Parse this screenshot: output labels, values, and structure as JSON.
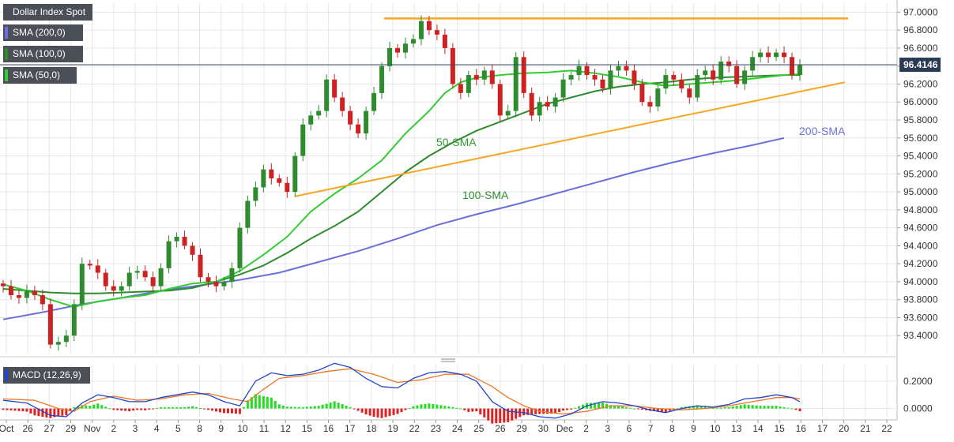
{
  "chart_data": [
    {
      "type": "candlestick",
      "title": "Dollar Index Spot",
      "last_price": "96.4146",
      "ylim": [
        93.2,
        97.1
      ],
      "y_ticks": [
        "97.0000",
        "96.8000",
        "96.6000",
        "96.4000",
        "96.2000",
        "96.0000",
        "95.8000",
        "95.6000",
        "95.4000",
        "95.2000",
        "95.0000",
        "94.8000",
        "94.6000",
        "94.4000",
        "94.2000",
        "94.0000",
        "93.8000",
        "93.6000",
        "93.4000"
      ],
      "x_ticks": [
        "Oct",
        "26",
        "27",
        "29",
        "Nov",
        "2",
        "3",
        "4",
        "5",
        "8",
        "9",
        "10",
        "11",
        "12",
        "15",
        "16",
        "17",
        "18",
        "19",
        "22",
        "23",
        "24",
        "25",
        "26",
        "29",
        "30",
        "Dec",
        "2",
        "3",
        "6",
        "7",
        "8",
        "9",
        "10",
        "13",
        "14",
        "15",
        "16",
        "17",
        "20",
        "21",
        "22"
      ],
      "legend": [
        {
          "label": "SMA (200,0)",
          "color": "#6a6fd9"
        },
        {
          "label": "SMA (100,0)",
          "color": "#2e8b2e"
        },
        {
          "label": "SMA (50,0)",
          "color": "#33cc33"
        }
      ],
      "annotations": [
        {
          "text": "50-SMA",
          "color": "#2e9e2e"
        },
        {
          "text": "100-SMA",
          "color": "#2e8b2e"
        },
        {
          "text": "200-SMA",
          "color": "#6a6fd9"
        }
      ],
      "close_path": [
        93.95,
        93.85,
        93.82,
        93.9,
        93.85,
        93.75,
        93.3,
        93.33,
        93.4,
        93.75,
        94.2,
        94.18,
        94.1,
        93.95,
        93.9,
        93.95,
        94.1,
        94.12,
        94.05,
        93.95,
        94.15,
        94.45,
        94.5,
        94.4,
        94.3,
        94.05,
        94.0,
        93.95,
        94.0,
        94.15,
        94.6,
        94.9,
        95.05,
        95.25,
        95.15,
        95.1,
        95.0,
        95.4,
        95.75,
        95.85,
        95.9,
        96.25,
        96.05,
        95.9,
        95.75,
        95.65,
        95.9,
        96.1,
        96.4,
        96.6,
        96.55,
        96.65,
        96.7,
        96.9,
        96.8,
        96.75,
        96.6,
        96.2,
        96.1,
        96.3,
        96.25,
        96.35,
        96.2,
        95.85,
        95.9,
        96.5,
        96.1,
        95.85,
        96.0,
        95.95,
        96.05,
        96.25,
        96.3,
        96.4,
        96.3,
        96.25,
        96.15,
        96.35,
        96.4,
        96.35,
        96.2,
        96.0,
        95.95,
        96.15,
        96.3,
        96.25,
        96.15,
        96.05,
        96.3,
        96.35,
        96.25,
        96.45,
        96.4,
        96.2,
        96.35,
        96.5,
        96.55,
        96.5,
        96.55,
        96.5,
        96.3,
        96.41
      ],
      "sma50": [
        [
          0,
          93.97
        ],
        [
          3,
          93.9
        ],
        [
          6,
          93.8
        ],
        [
          9,
          93.72
        ],
        [
          12,
          93.78
        ],
        [
          15,
          93.82
        ],
        [
          18,
          93.85
        ],
        [
          21,
          93.92
        ],
        [
          24,
          93.98
        ],
        [
          27,
          94.0
        ],
        [
          30,
          94.12
        ],
        [
          33,
          94.3
        ],
        [
          36,
          94.5
        ],
        [
          39,
          94.78
        ],
        [
          42,
          94.98
        ],
        [
          45,
          95.15
        ],
        [
          48,
          95.35
        ],
        [
          51,
          95.65
        ],
        [
          54,
          95.9
        ],
        [
          56,
          96.1
        ],
        [
          58,
          96.22
        ],
        [
          60,
          96.27
        ],
        [
          63,
          96.3
        ],
        [
          66,
          96.32
        ],
        [
          69,
          96.33
        ],
        [
          72,
          96.35
        ],
        [
          75,
          96.32
        ],
        [
          78,
          96.28
        ],
        [
          81,
          96.22
        ],
        [
          84,
          96.18
        ],
        [
          87,
          96.2
        ],
        [
          90,
          96.22
        ],
        [
          93,
          96.24
        ],
        [
          96,
          96.27
        ],
        [
          99,
          96.3
        ],
        [
          101,
          96.31
        ]
      ],
      "sma100": [
        [
          0,
          93.92
        ],
        [
          3,
          93.9
        ],
        [
          6,
          93.88
        ],
        [
          9,
          93.87
        ],
        [
          12,
          93.87
        ],
        [
          15,
          93.88
        ],
        [
          18,
          93.89
        ],
        [
          21,
          93.9
        ],
        [
          24,
          93.93
        ],
        [
          27,
          94.0
        ],
        [
          30,
          94.08
        ],
        [
          33,
          94.18
        ],
        [
          36,
          94.32
        ],
        [
          39,
          94.48
        ],
        [
          42,
          94.62
        ],
        [
          45,
          94.78
        ],
        [
          48,
          95.0
        ],
        [
          51,
          95.22
        ],
        [
          54,
          95.4
        ],
        [
          57,
          95.55
        ],
        [
          60,
          95.68
        ],
        [
          63,
          95.78
        ],
        [
          66,
          95.88
        ],
        [
          69,
          95.98
        ],
        [
          72,
          96.05
        ],
        [
          75,
          96.12
        ],
        [
          78,
          96.17
        ],
        [
          81,
          96.2
        ],
        [
          84,
          96.22
        ],
        [
          87,
          96.25
        ],
        [
          90,
          96.27
        ],
        [
          93,
          96.28
        ],
        [
          96,
          96.29
        ],
        [
          99,
          96.3
        ],
        [
          101,
          96.3
        ]
      ],
      "sma200": [
        [
          0,
          93.58
        ],
        [
          5,
          93.66
        ],
        [
          10,
          93.75
        ],
        [
          15,
          93.82
        ],
        [
          20,
          93.9
        ],
        [
          25,
          93.96
        ],
        [
          30,
          94.02
        ],
        [
          35,
          94.1
        ],
        [
          40,
          94.22
        ],
        [
          45,
          94.34
        ],
        [
          50,
          94.48
        ],
        [
          55,
          94.63
        ],
        [
          60,
          94.75
        ],
        [
          65,
          94.86
        ],
        [
          70,
          94.98
        ],
        [
          75,
          95.1
        ],
        [
          80,
          95.22
        ],
        [
          85,
          95.33
        ],
        [
          90,
          95.43
        ],
        [
          95,
          95.52
        ],
        [
          99,
          95.6
        ]
      ],
      "resistance_line": [
        [
          46,
          96.93
        ],
        [
          103,
          96.93
        ]
      ],
      "support_line": [
        [
          37,
          94.95
        ],
        [
          103,
          96.22
        ]
      ]
    },
    {
      "type": "macd",
      "title": "MACD (12,26,9)",
      "ylim": [
        -0.06,
        0.32
      ],
      "y_ticks": [
        "0.2000",
        "0.0000"
      ],
      "macd_line": [
        [
          0,
          0.06
        ],
        [
          3,
          0.04
        ],
        [
          6,
          -0.05
        ],
        [
          8,
          -0.06
        ],
        [
          10,
          0.04
        ],
        [
          12,
          0.1
        ],
        [
          14,
          0.08
        ],
        [
          16,
          0.05
        ],
        [
          18,
          0.05
        ],
        [
          20,
          0.08
        ],
        [
          22,
          0.1
        ],
        [
          24,
          0.12
        ],
        [
          26,
          0.1
        ],
        [
          28,
          0.05
        ],
        [
          30,
          0.02
        ],
        [
          32,
          0.2
        ],
        [
          34,
          0.26
        ],
        [
          36,
          0.24
        ],
        [
          38,
          0.25
        ],
        [
          40,
          0.28
        ],
        [
          42,
          0.33
        ],
        [
          44,
          0.3
        ],
        [
          46,
          0.22
        ],
        [
          48,
          0.16
        ],
        [
          50,
          0.15
        ],
        [
          52,
          0.22
        ],
        [
          54,
          0.26
        ],
        [
          56,
          0.27
        ],
        [
          58,
          0.25
        ],
        [
          60,
          0.2
        ],
        [
          62,
          0.05
        ],
        [
          64,
          -0.02
        ],
        [
          66,
          -0.03
        ],
        [
          68,
          -0.06
        ],
        [
          70,
          -0.07
        ],
        [
          72,
          -0.04
        ],
        [
          74,
          0.02
        ],
        [
          76,
          0.05
        ],
        [
          78,
          0.04
        ],
        [
          80,
          0.02
        ],
        [
          82,
          -0.01
        ],
        [
          84,
          -0.03
        ],
        [
          86,
          0.0
        ],
        [
          88,
          0.02
        ],
        [
          90,
          0.01
        ],
        [
          92,
          0.03
        ],
        [
          94,
          0.07
        ],
        [
          96,
          0.08
        ],
        [
          98,
          0.1
        ],
        [
          100,
          0.08
        ],
        [
          101,
          0.05
        ]
      ],
      "signal_line": [
        [
          0,
          0.07
        ],
        [
          4,
          0.06
        ],
        [
          7,
          0.0
        ],
        [
          9,
          -0.02
        ],
        [
          11,
          0.05
        ],
        [
          14,
          0.09
        ],
        [
          17,
          0.06
        ],
        [
          20,
          0.07
        ],
        [
          23,
          0.1
        ],
        [
          26,
          0.11
        ],
        [
          29,
          0.07
        ],
        [
          31,
          0.05
        ],
        [
          33,
          0.14
        ],
        [
          35,
          0.22
        ],
        [
          38,
          0.24
        ],
        [
          41,
          0.27
        ],
        [
          44,
          0.29
        ],
        [
          47,
          0.25
        ],
        [
          50,
          0.19
        ],
        [
          53,
          0.21
        ],
        [
          56,
          0.25
        ],
        [
          59,
          0.25
        ],
        [
          62,
          0.16
        ],
        [
          64,
          0.08
        ],
        [
          66,
          0.02
        ],
        [
          68,
          -0.02
        ],
        [
          71,
          -0.04
        ],
        [
          74,
          -0.02
        ],
        [
          77,
          0.02
        ],
        [
          80,
          0.02
        ],
        [
          83,
          0.0
        ],
        [
          86,
          -0.01
        ],
        [
          89,
          0.0
        ],
        [
          92,
          0.02
        ],
        [
          95,
          0.05
        ],
        [
          98,
          0.08
        ],
        [
          100,
          0.08
        ],
        [
          101,
          0.07
        ]
      ]
    }
  ]
}
